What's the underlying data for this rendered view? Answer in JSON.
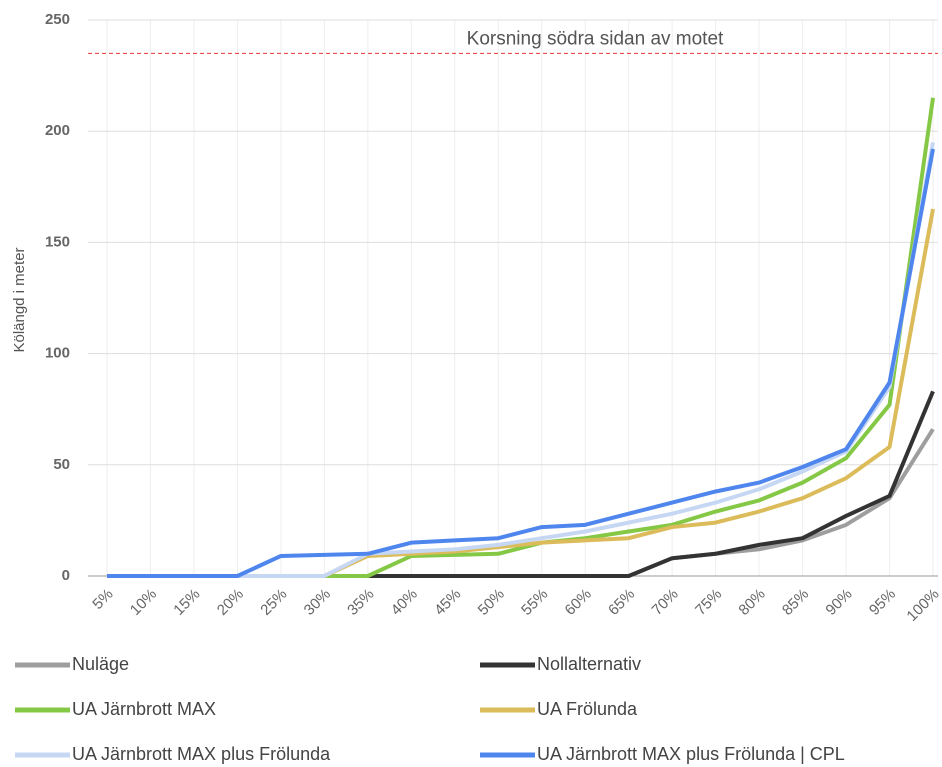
{
  "chart_data": {
    "type": "line",
    "ylabel": "Kölängd i meter",
    "annotation": {
      "text": "Korsning södra sidan av motet",
      "value": 235,
      "color": "#ee3333"
    },
    "categories": [
      "5%",
      "10%",
      "15%",
      "20%",
      "25%",
      "30%",
      "35%",
      "40%",
      "45%",
      "50%",
      "55%",
      "60%",
      "65%",
      "70%",
      "75%",
      "80%",
      "85%",
      "90%",
      "95%",
      "100%"
    ],
    "series": [
      {
        "name": "Nuläge",
        "color": "#9e9e9e",
        "values": [
          0,
          0,
          0,
          0,
          0,
          0,
          0,
          0,
          0,
          0,
          0,
          0,
          0,
          8,
          10,
          12,
          16,
          23,
          35,
          66
        ]
      },
      {
        "name": "Nollalternativ",
        "color": "#333333",
        "values": [
          0,
          0,
          0,
          0,
          0,
          0,
          0,
          0,
          0,
          0,
          0,
          0,
          0,
          8,
          10,
          14,
          17,
          27,
          36,
          83
        ]
      },
      {
        "name": "UA Järnbrott MAX",
        "color": "#84c846",
        "values": [
          0,
          0,
          0,
          0,
          0,
          0,
          0,
          9,
          9.5,
          10,
          15,
          17,
          20,
          23,
          29,
          34,
          42,
          53,
          77,
          215
        ]
      },
      {
        "name": "UA Frölunda",
        "color": "#dbbb5a",
        "values": [
          0,
          0,
          0,
          0,
          0,
          0,
          9,
          10,
          11,
          13,
          15,
          16,
          17,
          22,
          24,
          29,
          35,
          44,
          58,
          165
        ]
      },
      {
        "name": "UA Järnbrott MAX plus Frölunda",
        "color": "#c6d7f4",
        "values": [
          0,
          0,
          0,
          0,
          0,
          0,
          10,
          11,
          12,
          14,
          17,
          20,
          24,
          28,
          33,
          39,
          47,
          56,
          85,
          195
        ]
      },
      {
        "name": "UA Järnbrott MAX plus Frölunda | CPL",
        "color": "#4f86ee",
        "values": [
          0,
          0,
          0,
          0,
          9,
          9.5,
          10,
          15,
          16,
          17,
          22,
          23,
          28,
          33,
          38,
          42,
          49,
          57,
          87,
          192
        ]
      }
    ],
    "ylim": [
      0,
      250
    ],
    "yticks": [
      0,
      50,
      100,
      150,
      200,
      250
    ],
    "grid": true
  }
}
